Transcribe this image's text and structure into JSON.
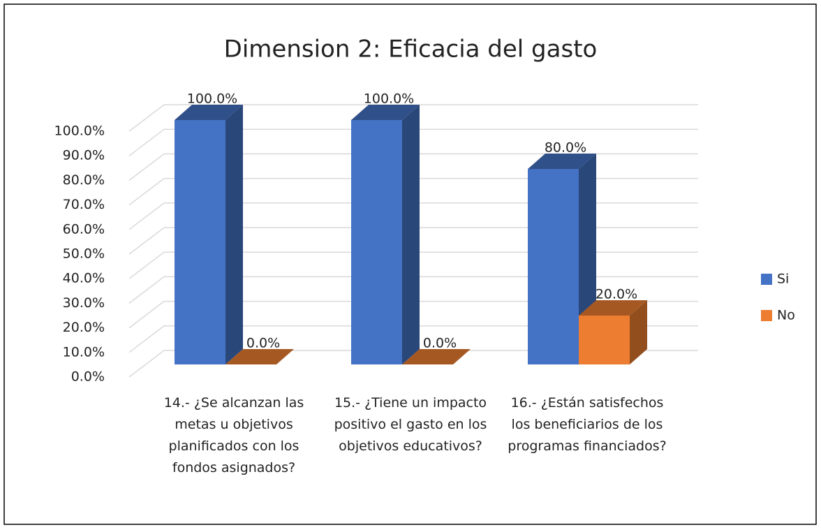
{
  "chart_data": {
    "type": "bar3d",
    "title": "Dimension 2: Eficacia del gasto",
    "categories": [
      "14.- ¿Se alcanzan las metas u objetivos planificados con los fondos asignados?",
      "15.- ¿Tiene un impacto positivo el gasto en los objetivos educativos?",
      "16.- ¿Están satisfechos los beneficiarios de los programas financiados?"
    ],
    "series": [
      {
        "name": "Si",
        "color": "#4472c4",
        "values": [
          100,
          100,
          80
        ],
        "value_labels": [
          "100.0%",
          "100.0%",
          "80.0%"
        ]
      },
      {
        "name": "No",
        "color": "#ed7d31",
        "values": [
          0,
          0,
          20
        ],
        "value_labels": [
          "0.0%",
          "0.0%",
          "20.0%"
        ]
      }
    ],
    "ylim": [
      0,
      100
    ],
    "yticks": [
      {
        "value": 0,
        "label": "0.0%"
      },
      {
        "value": 10,
        "label": "10.0%"
      },
      {
        "value": 20,
        "label": "20.0%"
      },
      {
        "value": 30,
        "label": "30.0%"
      },
      {
        "value": 40,
        "label": "40.0%"
      },
      {
        "value": 50,
        "label": "50.0%"
      },
      {
        "value": 60,
        "label": "60.0%"
      },
      {
        "value": 70,
        "label": "70.0%"
      },
      {
        "value": 80,
        "label": "80.0%"
      },
      {
        "value": 90,
        "label": "90.0%"
      },
      {
        "value": 100,
        "label": "100.0%"
      }
    ],
    "grid": true,
    "legend": "right"
  }
}
